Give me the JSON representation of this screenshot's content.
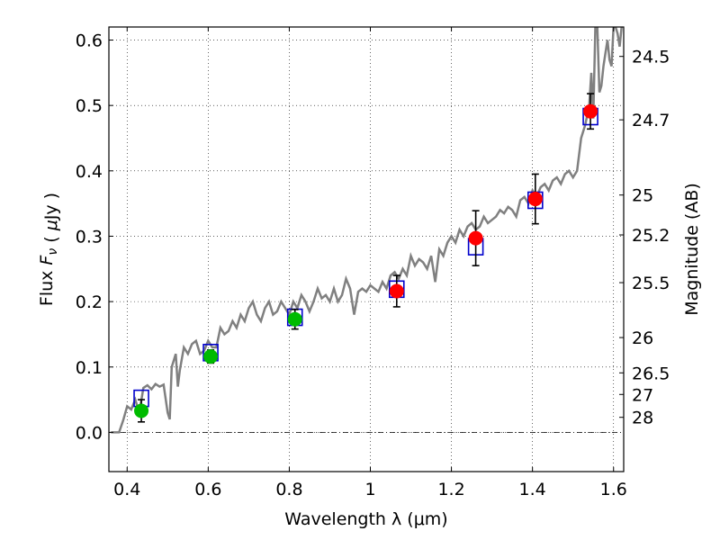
{
  "chart_data": {
    "type": "scatter",
    "title": "",
    "xlabel": "Wavelength  λ (μm)",
    "ylabel": "Flux  F_ν  ( μJy )",
    "y2label": "Magnitude (AB)",
    "xlim": [
      0.355,
      1.625
    ],
    "ylim": [
      -0.06,
      0.62
    ],
    "grid": true,
    "x_ticks": [
      0.4,
      0.6,
      0.8,
      1.0,
      1.2,
      1.4,
      1.6
    ],
    "x_tick_labels": [
      "0.4",
      "0.6",
      "0.8",
      "1",
      "1.2",
      "1.4",
      "1.6"
    ],
    "y_ticks": [
      0.0,
      0.1,
      0.2,
      0.3,
      0.4,
      0.5,
      0.6
    ],
    "y_tick_labels": [
      "0.0",
      "0.1",
      "0.2",
      "0.3",
      "0.4",
      "0.5",
      "0.6"
    ],
    "y2_ticks": [
      {
        "label": "24.5",
        "flux": 0.575
      },
      {
        "label": "24.7",
        "flux": 0.478
      },
      {
        "label": "25",
        "flux": 0.363
      },
      {
        "label": "25.2",
        "flux": 0.302
      },
      {
        "label": "25.5",
        "flux": 0.229
      },
      {
        "label": "26",
        "flux": 0.145
      },
      {
        "label": "26.5",
        "flux": 0.091
      },
      {
        "label": "27",
        "flux": 0.058
      },
      {
        "label": "28",
        "flux": 0.023
      }
    ],
    "zero_line": 0.0,
    "series": [
      {
        "kind": "line",
        "color": "#808080",
        "x": [
          0.36,
          0.38,
          0.39,
          0.4,
          0.41,
          0.42,
          0.43,
          0.44,
          0.45,
          0.46,
          0.47,
          0.48,
          0.49,
          0.5,
          0.505,
          0.51,
          0.52,
          0.525,
          0.53,
          0.54,
          0.55,
          0.56,
          0.57,
          0.58,
          0.59,
          0.6,
          0.61,
          0.62,
          0.63,
          0.64,
          0.65,
          0.66,
          0.67,
          0.68,
          0.69,
          0.7,
          0.71,
          0.72,
          0.73,
          0.74,
          0.75,
          0.76,
          0.77,
          0.78,
          0.79,
          0.8,
          0.81,
          0.82,
          0.83,
          0.84,
          0.85,
          0.86,
          0.87,
          0.88,
          0.89,
          0.9,
          0.91,
          0.92,
          0.93,
          0.94,
          0.95,
          0.96,
          0.97,
          0.98,
          0.99,
          1.0,
          1.01,
          1.02,
          1.03,
          1.04,
          1.05,
          1.06,
          1.07,
          1.08,
          1.09,
          1.1,
          1.11,
          1.12,
          1.13,
          1.14,
          1.15,
          1.16,
          1.17,
          1.18,
          1.19,
          1.2,
          1.21,
          1.22,
          1.23,
          1.24,
          1.25,
          1.26,
          1.27,
          1.28,
          1.29,
          1.3,
          1.31,
          1.32,
          1.33,
          1.34,
          1.35,
          1.36,
          1.37,
          1.38,
          1.39,
          1.4,
          1.41,
          1.42,
          1.43,
          1.44,
          1.45,
          1.46,
          1.47,
          1.48,
          1.49,
          1.5,
          1.51,
          1.52,
          1.53,
          1.54,
          1.545,
          1.55,
          1.555,
          1.56,
          1.565,
          1.57,
          1.575,
          1.58,
          1.585,
          1.59,
          1.595,
          1.6,
          1.605,
          1.61,
          1.615,
          1.62
        ],
        "values": [
          0.0,
          0.0,
          0.018,
          0.04,
          0.035,
          0.05,
          0.03,
          0.068,
          0.072,
          0.066,
          0.074,
          0.07,
          0.073,
          0.03,
          0.02,
          0.1,
          0.12,
          0.07,
          0.095,
          0.13,
          0.12,
          0.135,
          0.14,
          0.12,
          0.125,
          0.14,
          0.13,
          0.13,
          0.16,
          0.15,
          0.155,
          0.17,
          0.16,
          0.18,
          0.17,
          0.19,
          0.2,
          0.18,
          0.17,
          0.19,
          0.2,
          0.18,
          0.185,
          0.2,
          0.19,
          0.18,
          0.2,
          0.19,
          0.21,
          0.2,
          0.185,
          0.2,
          0.22,
          0.205,
          0.21,
          0.2,
          0.22,
          0.2,
          0.21,
          0.235,
          0.22,
          0.18,
          0.215,
          0.22,
          0.215,
          0.225,
          0.22,
          0.215,
          0.23,
          0.22,
          0.24,
          0.245,
          0.235,
          0.25,
          0.24,
          0.27,
          0.255,
          0.265,
          0.26,
          0.25,
          0.27,
          0.23,
          0.28,
          0.27,
          0.29,
          0.3,
          0.29,
          0.31,
          0.3,
          0.315,
          0.32,
          0.31,
          0.315,
          0.33,
          0.32,
          0.325,
          0.33,
          0.34,
          0.335,
          0.345,
          0.34,
          0.33,
          0.355,
          0.36,
          0.35,
          0.37,
          0.36,
          0.375,
          0.38,
          0.37,
          0.385,
          0.39,
          0.38,
          0.395,
          0.4,
          0.39,
          0.4,
          0.45,
          0.47,
          0.5,
          0.55,
          0.48,
          0.62,
          0.62,
          0.52,
          0.53,
          0.56,
          0.58,
          0.6,
          0.57,
          0.56,
          0.62,
          0.62,
          0.61,
          0.59,
          0.62
        ]
      },
      {
        "kind": "model-boxes",
        "color": "#0000cc",
        "x": [
          0.435,
          0.606,
          0.814,
          1.065,
          1.26,
          1.407,
          1.543
        ],
        "values": [
          0.052,
          0.122,
          0.176,
          0.219,
          0.284,
          0.355,
          0.483
        ]
      },
      {
        "kind": "points",
        "color": "#00bb00",
        "x": [
          0.435,
          0.606,
          0.814
        ],
        "values": [
          0.033,
          0.116,
          0.173
        ],
        "err": [
          0.017,
          0.01,
          0.015
        ]
      },
      {
        "kind": "points",
        "color": "#ff0000",
        "x": [
          1.065,
          1.26,
          1.407,
          1.543
        ],
        "values": [
          0.216,
          0.297,
          0.357,
          0.491
        ],
        "err": [
          0.024,
          0.042,
          0.038,
          0.027
        ]
      }
    ]
  }
}
